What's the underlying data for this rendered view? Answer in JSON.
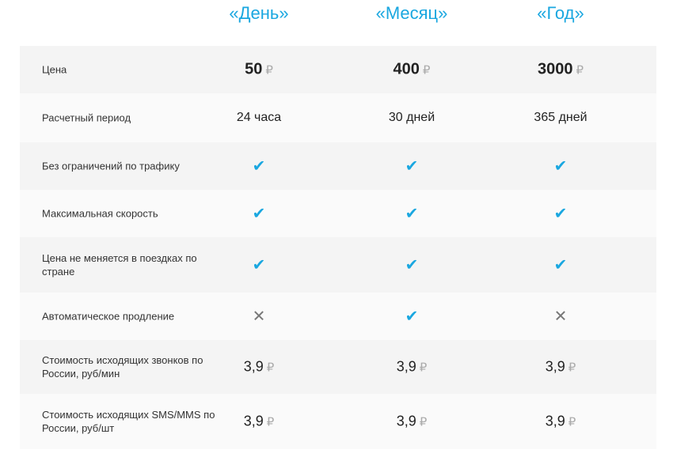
{
  "plans": [
    "«День»",
    "«Месяц»",
    "«Год»"
  ],
  "currency": "₽",
  "accent": "#1aa7e0",
  "rows": [
    {
      "label": "Цена",
      "type": "price",
      "values": [
        "50",
        "400",
        "3000"
      ]
    },
    {
      "label": "Расчетный период",
      "type": "text",
      "values": [
        "24 часа",
        "30 дней",
        "365 дней"
      ]
    },
    {
      "label": "Без ограничений по трафику",
      "type": "bool",
      "values": [
        true,
        true,
        true
      ]
    },
    {
      "label": "Максимальная скорость",
      "type": "bool",
      "values": [
        true,
        true,
        true
      ]
    },
    {
      "label": "Цена не меняется в поездках по стране",
      "type": "bool",
      "values": [
        true,
        true,
        true
      ]
    },
    {
      "label": "Автоматическое продление",
      "type": "bool",
      "values": [
        false,
        true,
        false
      ]
    },
    {
      "label": "Стоимость исходящих звонков по России, руб/мин",
      "type": "rate",
      "values": [
        "3,9",
        "3,9",
        "3,9"
      ]
    },
    {
      "label": "Стоимость исходящих SMS/MMS по России, руб/шт",
      "type": "rate",
      "values": [
        "3,9",
        "3,9",
        "3,9"
      ]
    }
  ]
}
